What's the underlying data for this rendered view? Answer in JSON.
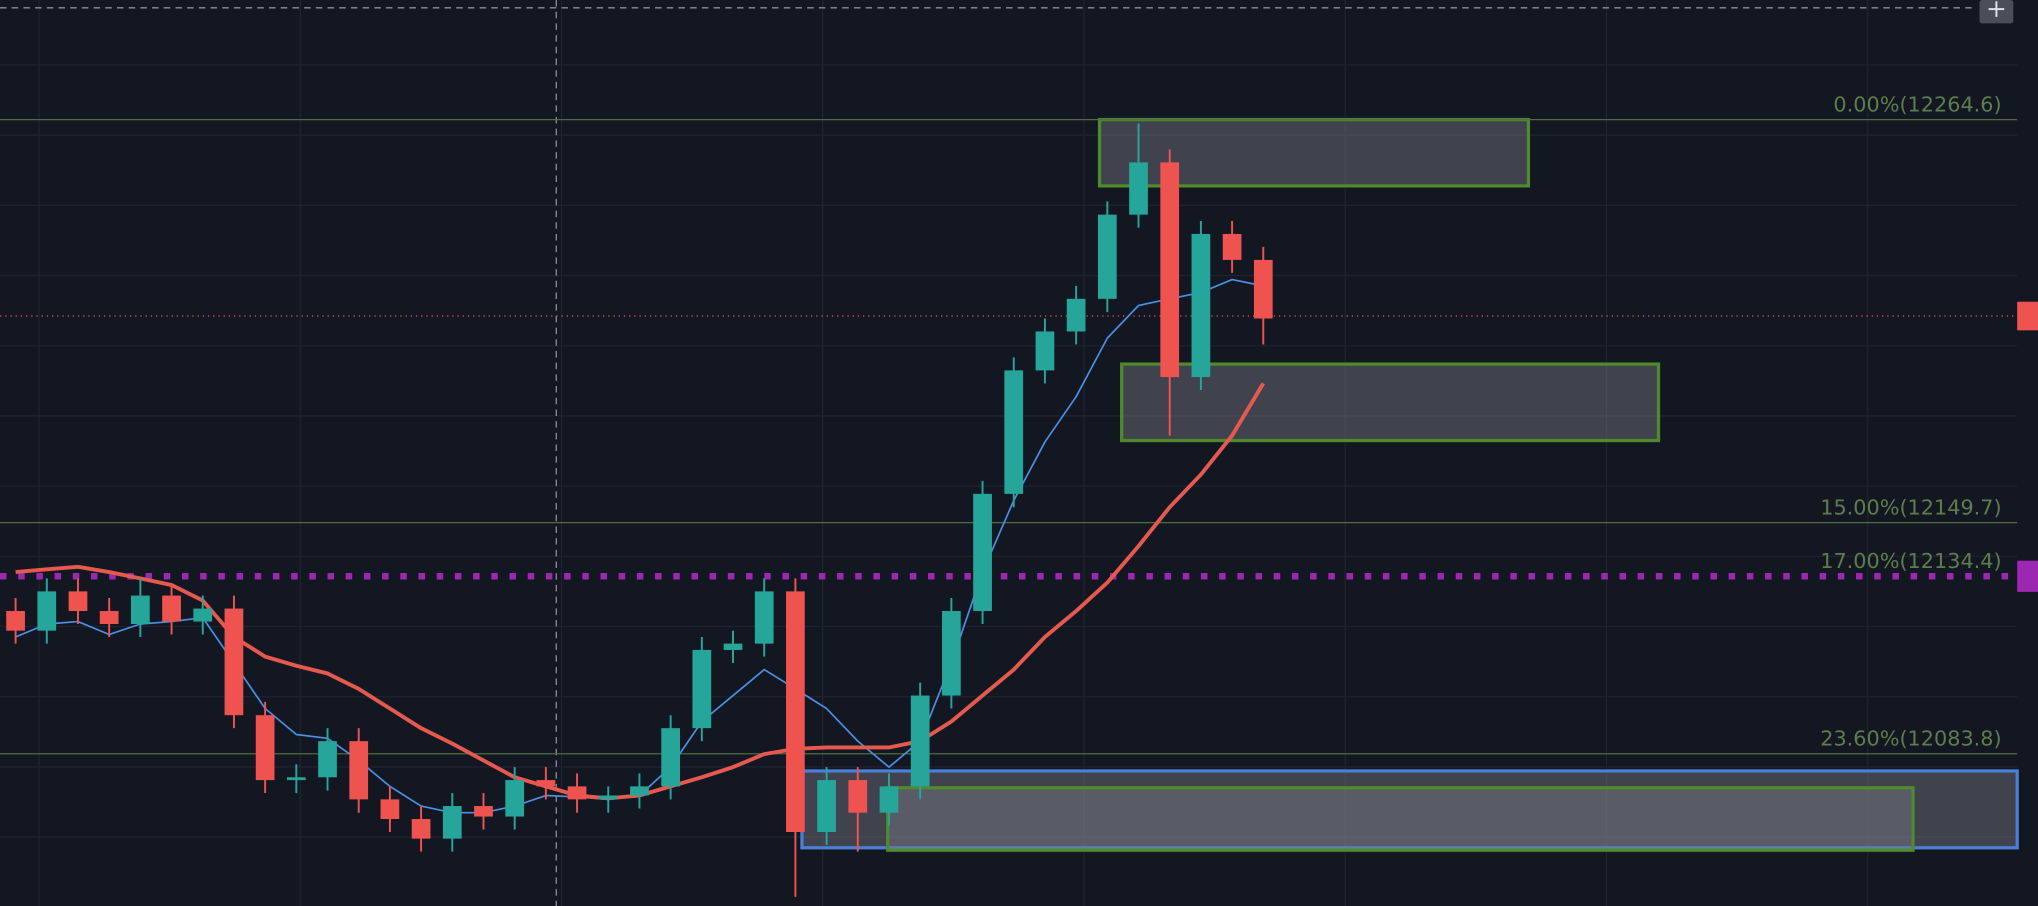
{
  "chart_data": {
    "type": "candlestick",
    "ylim": [
      12040.4,
      12298.7
    ],
    "xlim": [
      -0.5,
      64.17
    ],
    "up_color": "#26a69a",
    "down_color": "#ef5350",
    "open": [
      12124.5,
      12118.9,
      12130.1,
      12124.5,
      12120.8,
      12128.9,
      12121.5,
      12125.2,
      12094.8,
      12076.3,
      12077.1,
      12087.4,
      12070.8,
      12065.2,
      12059.6,
      12068.9,
      12065.9,
      12076.3,
      12074.5,
      12070.8,
      12071.9,
      12074.5,
      12091.1,
      12113.4,
      12115.2,
      12130.1,
      12061.5,
      12076.3,
      12067.0,
      12074.5,
      12100.4,
      12124.5,
      12157.9,
      12193.1,
      12204.2,
      12213.5,
      12237.5,
      12252.4,
      12191.2,
      12232.0,
      12224.6
    ],
    "high": [
      12128.2,
      12133.8,
      12133.8,
      12128.2,
      12133.8,
      12131.9,
      12128.9,
      12128.9,
      12098.6,
      12080.8,
      12091.1,
      12091.1,
      12074.5,
      12068.9,
      12072.6,
      12072.6,
      12080.0,
      12080.0,
      12078.2,
      12074.5,
      12078.2,
      12094.8,
      12117.1,
      12118.9,
      12133.8,
      12133.8,
      12080.0,
      12080.0,
      12078.2,
      12104.1,
      12128.2,
      12161.6,
      12196.8,
      12207.9,
      12217.2,
      12241.3,
      12263.5,
      12256.1,
      12235.7,
      12235.7,
      12228.3
    ],
    "low": [
      12115.2,
      12115.2,
      12120.8,
      12117.1,
      12117.1,
      12117.8,
      12117.8,
      12091.1,
      12072.6,
      12072.6,
      12073.3,
      12067.0,
      12061.5,
      12055.9,
      12055.9,
      12062.2,
      12062.2,
      12070.8,
      12067.0,
      12067.0,
      12068.2,
      12070.8,
      12087.4,
      12109.7,
      12111.5,
      12043.0,
      12057.8,
      12055.9,
      12063.3,
      12070.8,
      12096.7,
      12120.8,
      12154.1,
      12189.4,
      12200.5,
      12209.7,
      12233.8,
      12174.5,
      12187.5,
      12220.9,
      12200.5
    ],
    "close": [
      12118.9,
      12130.1,
      12124.5,
      12120.8,
      12128.9,
      12121.5,
      12125.2,
      12094.8,
      12076.3,
      12077.1,
      12087.4,
      12070.8,
      12065.2,
      12059.6,
      12068.9,
      12065.9,
      12076.3,
      12074.5,
      12070.8,
      12071.9,
      12074.5,
      12091.1,
      12113.4,
      12115.2,
      12130.1,
      12061.5,
      12076.3,
      12067.0,
      12074.5,
      12100.4,
      12124.5,
      12157.9,
      12193.1,
      12204.2,
      12213.5,
      12237.5,
      12252.4,
      12191.2,
      12232.0,
      12224.6,
      12207.9
    ],
    "moving_averages": [
      {
        "color": "#4a90e2",
        "width": 1.3,
        "values": [
          12117.1,
          12120.8,
          12121.5,
          12117.8,
          12120.8,
          12121.5,
          12122.6,
          12109.7,
          12096.7,
          12089.3,
          12088.2,
          12081.9,
          12074.5,
          12068.9,
          12067.0,
          12067.0,
          12068.9,
          12071.9,
          12071.5,
          12070.8,
          12071.9,
          12080.0,
          12093.0,
          12100.4,
          12107.8,
          12102.3,
          12096.7,
          12087.4,
          12080.0,
          12087.4,
          12109.7,
          12135.6,
          12156.0,
          12172.7,
          12185.6,
          12202.3,
          12211.6,
          12213.5,
          12215.3,
          12219.0,
          12217.2
        ]
      },
      {
        "color": "#e5594f",
        "width": 3,
        "values": [
          12135.6,
          12136.4,
          12137.1,
          12135.6,
          12133.8,
          12131.9,
          12127.5,
          12117.1,
          12111.5,
          12108.9,
          12106.7,
          12102.3,
          12096.7,
          12091.1,
          12086.7,
          12081.9,
          12077.1,
          12074.5,
          12071.9,
          12071.1,
          12071.9,
          12074.5,
          12077.1,
          12080.0,
          12083.7,
          12085.2,
          12085.6,
          12085.6,
          12085.6,
          12087.4,
          12093.0,
          12100.4,
          12107.8,
          12117.1,
          12124.5,
          12132.6,
          12143.0,
          12154.1,
          12163.4,
          12174.5,
          12189.4
        ]
      }
    ],
    "levels": [
      {
        "label": "0.00%(12264.6)",
        "price": 12264.6,
        "color": "#4d6e3f",
        "style": "solid"
      },
      {
        "label": "15.00%(12149.7)",
        "price": 12149.7,
        "color": "#4d6e3f",
        "style": "solid"
      },
      {
        "label": "17.00%(12134.4)",
        "price": 12134.4,
        "color": "#9c27b0",
        "style": "dotted"
      },
      {
        "label": "23.60%(12083.8)",
        "price": 12083.8,
        "color": "#4d6e3f",
        "style": "solid"
      }
    ],
    "zones": [
      {
        "from": 25.21,
        "to": 64.17,
        "high": 12078.9,
        "low": 12057.0,
        "color": "#4a7fd8"
      },
      {
        "from": 34.75,
        "to": 48.5,
        "high": 12264.6,
        "low": 12245.7,
        "color": "#4f8a2b"
      },
      {
        "from": 35.46,
        "to": 52.67,
        "high": 12194.9,
        "low": 12173.1,
        "color": "#4f8a2b"
      },
      {
        "from": 27.96,
        "to": 60.83,
        "high": 12074.1,
        "low": 12056.3,
        "color": "#4f8a2b"
      }
    ],
    "last_price": 12208.6,
    "last_price_color": "#ef5350"
  }
}
